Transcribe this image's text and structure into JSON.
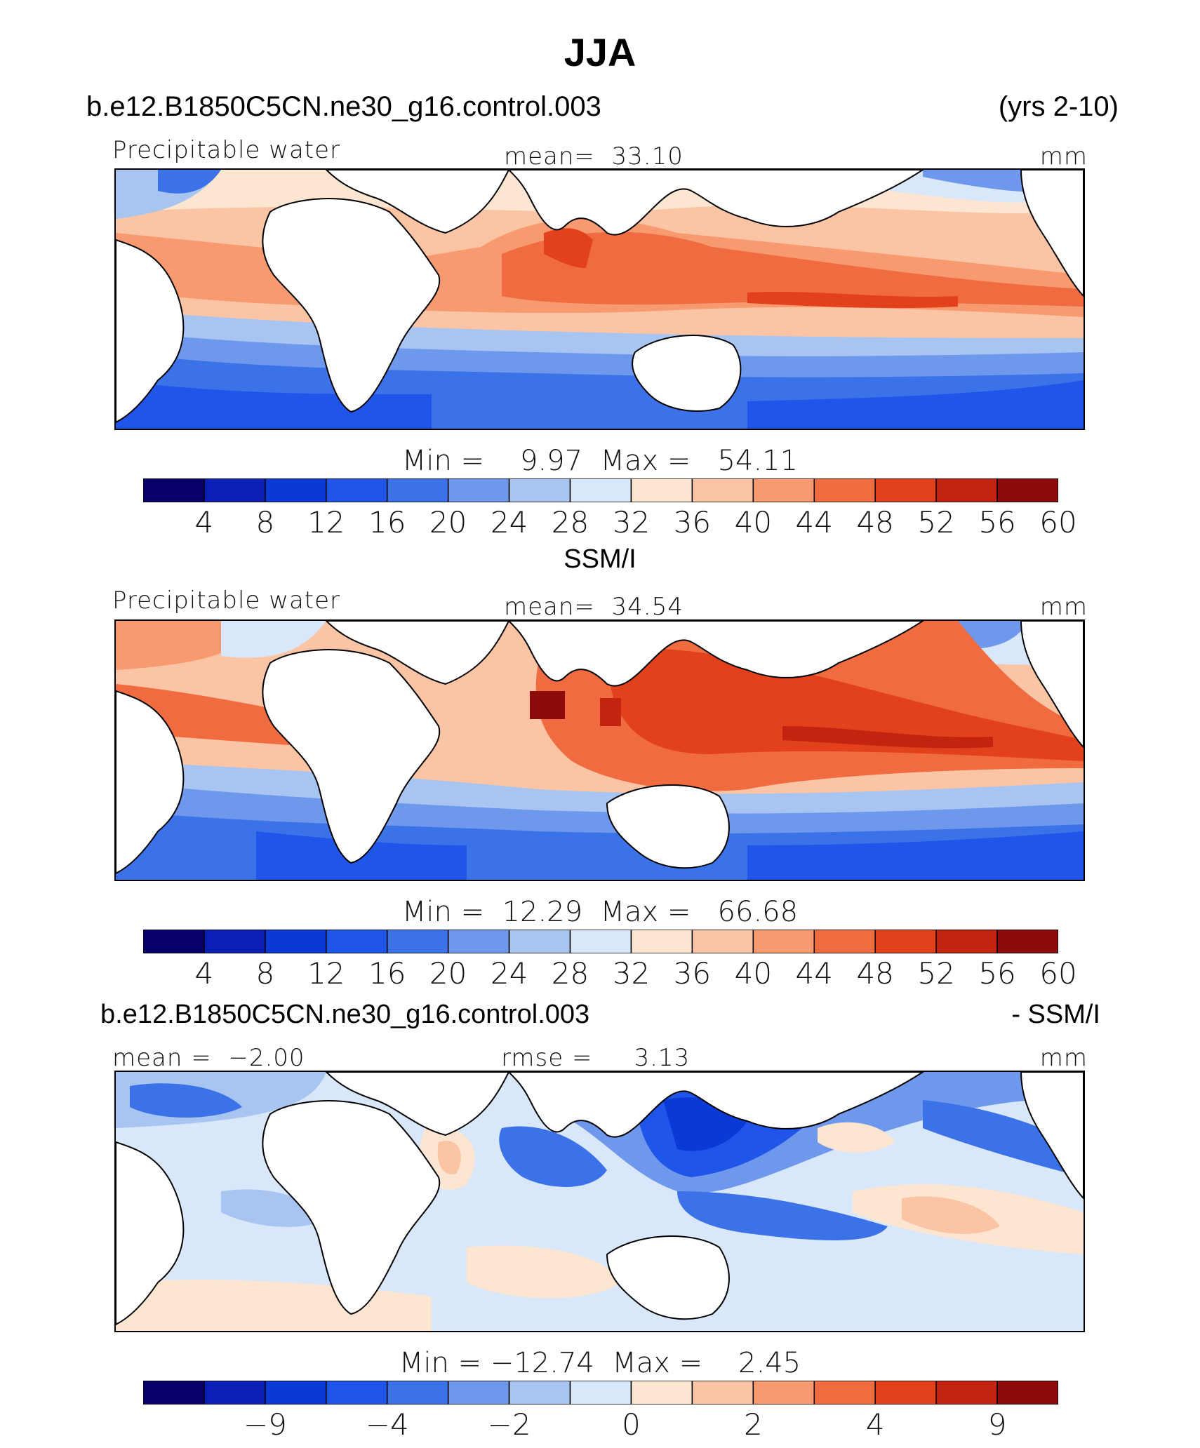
{
  "figure": {
    "title": "JJA",
    "case_name": "b.e12.B1850C5CN.ne30_g16.control.003",
    "years": "(yrs 2-10)"
  },
  "panels": [
    {
      "id": "model",
      "left_label": "Precipitable water",
      "center_label": "mean=  33.10",
      "units": "mm",
      "minmax": "Min =    9.97  Max =   54.11",
      "ticks": [
        "4",
        "8",
        "12",
        "16",
        "20",
        "24",
        "28",
        "32",
        "36",
        "40",
        "44",
        "48",
        "52",
        "56",
        "60"
      ]
    },
    {
      "id": "obs",
      "heading": "SSM/I",
      "left_label": "Precipitable water",
      "center_label": "mean=  34.54",
      "units": "mm",
      "minmax": "Min =  12.29  Max =   66.68",
      "ticks": [
        "4",
        "8",
        "12",
        "16",
        "20",
        "24",
        "28",
        "32",
        "36",
        "40",
        "44",
        "48",
        "52",
        "56",
        "60"
      ]
    },
    {
      "id": "diff",
      "heading_left": "b.e12.B1850C5CN.ne30_g16.control.003",
      "heading_right": "- SSM/I",
      "left_label": "mean =  −2.00",
      "center_label": "rmse =     3.13",
      "units": "mm",
      "minmax": "Min = −12.74  Max =    2.45",
      "ticks": [
        "−9",
        "−4",
        "−2",
        "0",
        "2",
        "4",
        "9"
      ]
    }
  ],
  "colorbar_colors": [
    "#08006b",
    "#0a1fb5",
    "#0a39d6",
    "#1f55e8",
    "#3c72e8",
    "#6e98ec",
    "#a8c5f2",
    "#d8e7fa",
    "#fde6d1",
    "#fbc4a4",
    "#f79a70",
    "#f06b40",
    "#e3401c",
    "#c3240f",
    "#8c0b0b"
  ],
  "icons": {
    "continents": "continent-outline-icon"
  }
}
